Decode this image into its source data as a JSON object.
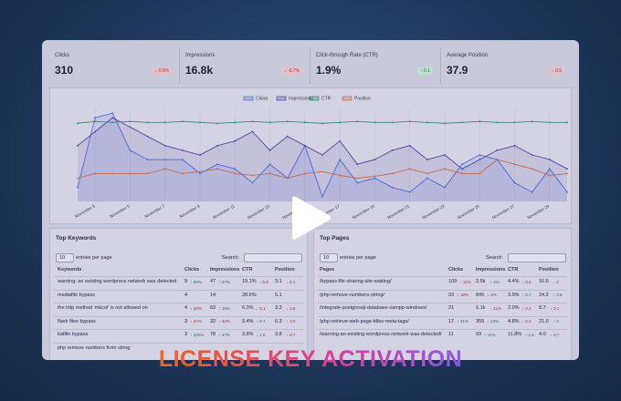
{
  "stats": [
    {
      "label": "Clicks",
      "value": "310",
      "change": "↓ 0.0%"
    },
    {
      "label": "Impressions",
      "value": "16.8k",
      "change": "↓ -0.7%"
    },
    {
      "label": "Click-through Rate (CTR)",
      "value": "1.9%",
      "change": "↑ 0.1"
    },
    {
      "label": "Average Position",
      "value": "37.9",
      "change": "↓ 0.5"
    }
  ],
  "chart": {
    "type": "line",
    "ylim": [
      0,
      100
    ],
    "x": [
      null,
      "November 3",
      null,
      "November 5",
      null,
      "November 7",
      null,
      "November 9",
      null,
      "November 11",
      null,
      "November 13",
      null,
      "November 15",
      null,
      "November 17",
      null,
      "November 19",
      null,
      "November 21",
      null,
      "November 23",
      null,
      "November 25",
      null,
      "November 27",
      null,
      "November 29",
      null
    ],
    "series": [
      {
        "name": "Clicks",
        "color": "#4a6fd8",
        "values": [
          15,
          90,
          95,
          55,
          45,
          45,
          45,
          30,
          40,
          35,
          20,
          40,
          25,
          60,
          5,
          45,
          20,
          25,
          15,
          10,
          25,
          15,
          40,
          50,
          45,
          20,
          10,
          35,
          10
        ]
      },
      {
        "name": "Impressions",
        "color": "#5b3fa6",
        "values": [
          60,
          75,
          90,
          80,
          70,
          60,
          55,
          50,
          60,
          65,
          75,
          55,
          70,
          60,
          50,
          65,
          40,
          45,
          55,
          60,
          45,
          50,
          35,
          45,
          55,
          60,
          50,
          45,
          35
        ]
      },
      {
        "name": "CTR",
        "color": "#2f8a6e",
        "values": [
          84,
          86,
          85,
          86,
          85,
          85,
          86,
          85,
          84,
          85,
          86,
          85,
          86,
          85,
          84,
          85,
          86,
          85,
          85,
          86,
          85,
          84,
          85,
          86,
          85,
          85,
          86,
          85,
          85
        ]
      },
      {
        "name": "Position",
        "color": "#c56a4a",
        "values": [
          25,
          30,
          30,
          30,
          30,
          35,
          30,
          32,
          35,
          30,
          28,
          30,
          25,
          30,
          32,
          28,
          25,
          27,
          30,
          35,
          30,
          35,
          30,
          30,
          45,
          40,
          35,
          28,
          30
        ]
      }
    ]
  },
  "keywords": {
    "title": "Top Keywords",
    "page_size": "10",
    "entries_label": "entries per page",
    "search_label": "Search:",
    "columns": [
      "Keywords",
      "Clicks",
      "Impressions",
      "CTR",
      "Position"
    ],
    "rows": [
      [
        {
          "text": "warning: an existing wordpress network was detected."
        },
        {
          "text": "9",
          "delta": "↑ 89%"
        },
        {
          "text": "47",
          "delta": "↑ 27%"
        },
        {
          "text": "19.1%",
          "delta": "↓ 5.8"
        },
        {
          "text": "3.1",
          "delta": "↓ 6.1"
        }
      ],
      [
        {
          "text": "mediafile bypass"
        },
        {
          "text": "4"
        },
        {
          "text": "14"
        },
        {
          "text": "28.6%"
        },
        {
          "text": "5.1"
        }
      ],
      [
        {
          "text": "the http method 'mkcol' is not allowed on"
        },
        {
          "text": "4",
          "delta": "↓ 20%"
        },
        {
          "text": "63",
          "delta": "↑ 19%"
        },
        {
          "text": "6.3%",
          "delta": "↓ 5.1"
        },
        {
          "text": "3.3",
          "delta": "↓ 0.8"
        }
      ],
      [
        {
          "text": "flash files bypass"
        },
        {
          "text": "3",
          "delta": "↓ 67%"
        },
        {
          "text": "32",
          "delta": "↓ 43%"
        },
        {
          "text": "9.4%",
          "delta": "↑ 6.7"
        },
        {
          "text": "6.3",
          "delta": "↓ 3.0"
        }
      ],
      [
        {
          "text": "katfile bypass"
        },
        {
          "text": "3",
          "delta": "↑ 200%"
        },
        {
          "text": "78",
          "delta": "↑ 47%"
        },
        {
          "text": "3.8%",
          "delta": "↓ 1.6"
        },
        {
          "text": "3.8",
          "delta": "↓ 0.7"
        }
      ],
      [
        {
          "text": "php remove numbers from string"
        }
      ]
    ]
  },
  "pages": {
    "title": "Top Pages",
    "page_size": "10",
    "entries_label": "entries per page",
    "search_label": "Search:",
    "columns": [
      "Pages",
      "Clicks",
      "Impressions",
      "CTR",
      "Position"
    ],
    "rows": [
      [
        {
          "text": "/bypass-file-sharing-site-waiting/"
        },
        {
          "text": "109",
          "delta": "↓ 11%"
        },
        {
          "text": "2.5k",
          "delta": "↑ 4%"
        },
        {
          "text": "4.4%",
          "delta": "↓ 0.6"
        },
        {
          "text": "16.6",
          "delta": "↓ 2"
        }
      ],
      [
        {
          "text": "/php-remove-numbers-string/"
        },
        {
          "text": "33",
          "delta": "↓ 18%"
        },
        {
          "text": "845",
          "delta": "↓ 4%"
        },
        {
          "text": "3.9%",
          "delta": "↑ 0.7"
        },
        {
          "text": "24.2",
          "delta": "↑ 3.9"
        }
      ],
      [
        {
          "text": "/integrate-postgresql-database-xampp-windows/"
        },
        {
          "text": "21"
        },
        {
          "text": "1.1k",
          "delta": "↓ 11%"
        },
        {
          "text": "2.0%",
          "delta": "↓ 0.2"
        },
        {
          "text": "8.7",
          "delta": "↓ 0.1"
        }
      ],
      [
        {
          "text": "/php-retrieve-web-page-titles-meta-tags/"
        },
        {
          "text": "17",
          "delta": "↑ 31%"
        },
        {
          "text": "355",
          "delta": "↑ 23%"
        },
        {
          "text": "4.8%",
          "delta": "↓ 0.2"
        },
        {
          "text": "21.0",
          "delta": "↑ 2"
        }
      ],
      [
        {
          "text": "/warning-an-existing-wordpress-network-was-detected/"
        },
        {
          "text": "11"
        },
        {
          "text": "93",
          "delta": "↑ 10%"
        },
        {
          "text": "11.8%",
          "delta": "↑ 1.6"
        },
        {
          "text": "4.0",
          "delta": "↓ 0.7"
        }
      ]
    ]
  },
  "banner": "LICENSE KEY ACTIVATION"
}
